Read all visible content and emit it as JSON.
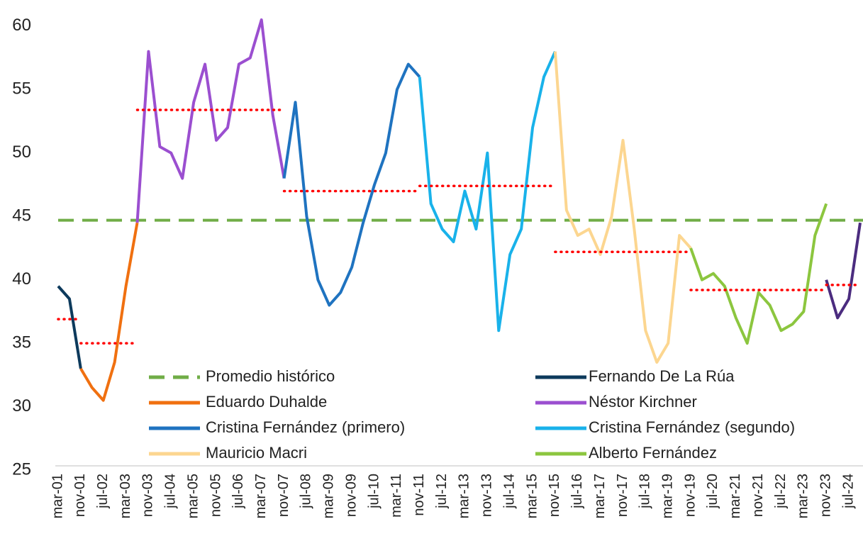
{
  "chart_data": {
    "type": "line",
    "categories": [
      "mar-01",
      null,
      "nov-01",
      null,
      "jul-02",
      null,
      "mar-03",
      null,
      "nov-03",
      null,
      "jul-04",
      null,
      "mar-05",
      null,
      "nov-05",
      null,
      "jul-06",
      null,
      "mar-07",
      null,
      "nov-07",
      null,
      "jul-08",
      null,
      "mar-09",
      null,
      "nov-09",
      null,
      "jul-10",
      null,
      "mar-11",
      null,
      "nov-11",
      null,
      "jul-12",
      null,
      "mar-13",
      null,
      "nov-13",
      null,
      "jul-14",
      null,
      "mar-15",
      null,
      "nov-15",
      null,
      "jul-16",
      null,
      "mar-17",
      null,
      "nov-17",
      null,
      "jul-18",
      null,
      "mar-19",
      null,
      "nov-19",
      null,
      "jul-20",
      null,
      "mar-21",
      null,
      "nov-21",
      null,
      "jul-22",
      null,
      "mar-23",
      null,
      "nov-23",
      null,
      "jul-24",
      null
    ],
    "ylim": [
      25,
      61
    ],
    "yticks": [
      25,
      30,
      35,
      40,
      45,
      50,
      55,
      60
    ],
    "reference_line": {
      "name": "Promedio histórico",
      "value": 44.7,
      "color": "#70ad47"
    },
    "average_color": "#ff0000",
    "series": [
      {
        "name": "Fernando De La Rúa",
        "color": "#0d3a5c",
        "average": 36.9,
        "values": [
          39.5,
          38.5,
          33,
          null,
          null,
          null,
          null,
          null,
          null,
          null,
          null,
          null,
          null,
          null,
          null,
          null,
          null,
          null,
          null,
          null,
          null,
          null,
          null,
          null,
          null,
          null,
          null,
          null,
          null,
          null,
          null,
          null,
          null,
          null,
          null,
          null,
          null,
          null,
          null,
          null,
          null,
          null,
          null,
          null,
          null,
          null,
          null,
          null,
          null,
          null,
          null,
          null,
          null,
          null,
          null,
          null,
          null,
          null,
          null,
          null,
          null,
          null,
          null,
          null,
          null,
          null,
          null,
          null,
          null,
          null,
          null,
          null
        ]
      },
      {
        "name": "Eduardo Duhalde",
        "color": "#f07010",
        "average": 35,
        "values": [
          null,
          null,
          33,
          31.5,
          30.5,
          33.5,
          39.5,
          44.5,
          null,
          null,
          null,
          null,
          null,
          null,
          null,
          null,
          null,
          null,
          null,
          null,
          null,
          null,
          null,
          null,
          null,
          null,
          null,
          null,
          null,
          null,
          null,
          null,
          null,
          null,
          null,
          null,
          null,
          null,
          null,
          null,
          null,
          null,
          null,
          null,
          null,
          null,
          null,
          null,
          null,
          null,
          null,
          null,
          null,
          null,
          null,
          null,
          null,
          null,
          null,
          null,
          null,
          null,
          null,
          null,
          null,
          null,
          null,
          null,
          null,
          null,
          null,
          null
        ]
      },
      {
        "name": "Néstor Kirchner",
        "color": "#9b4fd0",
        "average": 53.4,
        "values": [
          null,
          null,
          null,
          null,
          null,
          null,
          null,
          44.5,
          58,
          50.5,
          50,
          48,
          54,
          57,
          51,
          52,
          57,
          57.5,
          60.5,
          53,
          48,
          null,
          null,
          null,
          null,
          null,
          null,
          null,
          null,
          null,
          null,
          null,
          null,
          null,
          null,
          null,
          null,
          null,
          null,
          null,
          null,
          null,
          null,
          null,
          null,
          null,
          null,
          null,
          null,
          null,
          null,
          null,
          null,
          null,
          null,
          null,
          null,
          null,
          null,
          null,
          null,
          null,
          null,
          null,
          null,
          null,
          null,
          null,
          null,
          null,
          null,
          null
        ]
      },
      {
        "name": "Cristina Fernández (primero)",
        "color": "#1f73c0",
        "average": 47,
        "values": [
          null,
          null,
          null,
          null,
          null,
          null,
          null,
          null,
          null,
          null,
          null,
          null,
          null,
          null,
          null,
          null,
          null,
          null,
          null,
          null,
          48,
          54,
          45,
          40,
          38,
          39,
          41,
          44.5,
          47.5,
          50,
          55,
          57,
          56,
          null,
          null,
          null,
          null,
          null,
          null,
          null,
          null,
          null,
          null,
          null,
          null,
          null,
          null,
          null,
          null,
          null,
          null,
          null,
          null,
          null,
          null,
          null,
          null,
          null,
          null,
          null,
          null,
          null,
          null,
          null,
          null,
          null,
          null,
          null,
          null,
          null,
          null,
          null
        ]
      },
      {
        "name": "Cristina Fernández (segundo)",
        "color": "#19b2ea",
        "average": 47.4,
        "values": [
          null,
          null,
          null,
          null,
          null,
          null,
          null,
          null,
          null,
          null,
          null,
          null,
          null,
          null,
          null,
          null,
          null,
          null,
          null,
          null,
          null,
          null,
          null,
          null,
          null,
          null,
          null,
          null,
          null,
          null,
          null,
          null,
          56,
          46,
          44,
          43,
          47,
          44,
          50,
          36,
          42,
          44,
          52,
          56,
          58,
          null,
          null,
          null,
          null,
          null,
          null,
          null,
          null,
          null,
          null,
          null,
          null,
          null,
          null,
          null,
          null,
          null,
          null,
          null,
          null,
          null,
          null,
          null,
          null,
          null,
          null,
          null
        ]
      },
      {
        "name": "Mauricio Macri",
        "color": "#fcd690",
        "average": 42.2,
        "values": [
          null,
          null,
          null,
          null,
          null,
          null,
          null,
          null,
          null,
          null,
          null,
          null,
          null,
          null,
          null,
          null,
          null,
          null,
          null,
          null,
          null,
          null,
          null,
          null,
          null,
          null,
          null,
          null,
          null,
          null,
          null,
          null,
          null,
          null,
          null,
          null,
          null,
          null,
          null,
          null,
          null,
          null,
          null,
          null,
          58,
          45.5,
          43.5,
          44,
          42,
          45,
          51,
          44,
          36,
          33.5,
          35,
          43.5,
          42.5,
          null,
          null,
          null,
          null,
          null,
          null,
          null,
          null,
          null,
          null,
          null,
          null,
          null,
          null,
          null
        ]
      },
      {
        "name": "Alberto Fernández",
        "color": "#8cc63f",
        "average": 39.2,
        "values": [
          null,
          null,
          null,
          null,
          null,
          null,
          null,
          null,
          null,
          null,
          null,
          null,
          null,
          null,
          null,
          null,
          null,
          null,
          null,
          null,
          null,
          null,
          null,
          null,
          null,
          null,
          null,
          null,
          null,
          null,
          null,
          null,
          null,
          null,
          null,
          null,
          null,
          null,
          null,
          null,
          null,
          null,
          null,
          null,
          null,
          null,
          null,
          null,
          null,
          null,
          null,
          null,
          null,
          null,
          null,
          null,
          42.5,
          40,
          40.5,
          39.5,
          37,
          35,
          39,
          38,
          36,
          36.5,
          37.5,
          43.5,
          46,
          null,
          null,
          null
        ]
      },
      {
        "color": "#4b2c7f",
        "average": 39.6,
        "values": [
          null,
          null,
          null,
          null,
          null,
          null,
          null,
          null,
          null,
          null,
          null,
          null,
          null,
          null,
          null,
          null,
          null,
          null,
          null,
          null,
          null,
          null,
          null,
          null,
          null,
          null,
          null,
          null,
          null,
          null,
          null,
          null,
          null,
          null,
          null,
          null,
          null,
          null,
          null,
          null,
          null,
          null,
          null,
          null,
          null,
          null,
          null,
          null,
          null,
          null,
          null,
          null,
          null,
          null,
          null,
          null,
          null,
          null,
          null,
          null,
          null,
          null,
          null,
          null,
          null,
          null,
          null,
          null,
          40,
          37,
          38.5,
          44.5
        ]
      }
    ]
  }
}
